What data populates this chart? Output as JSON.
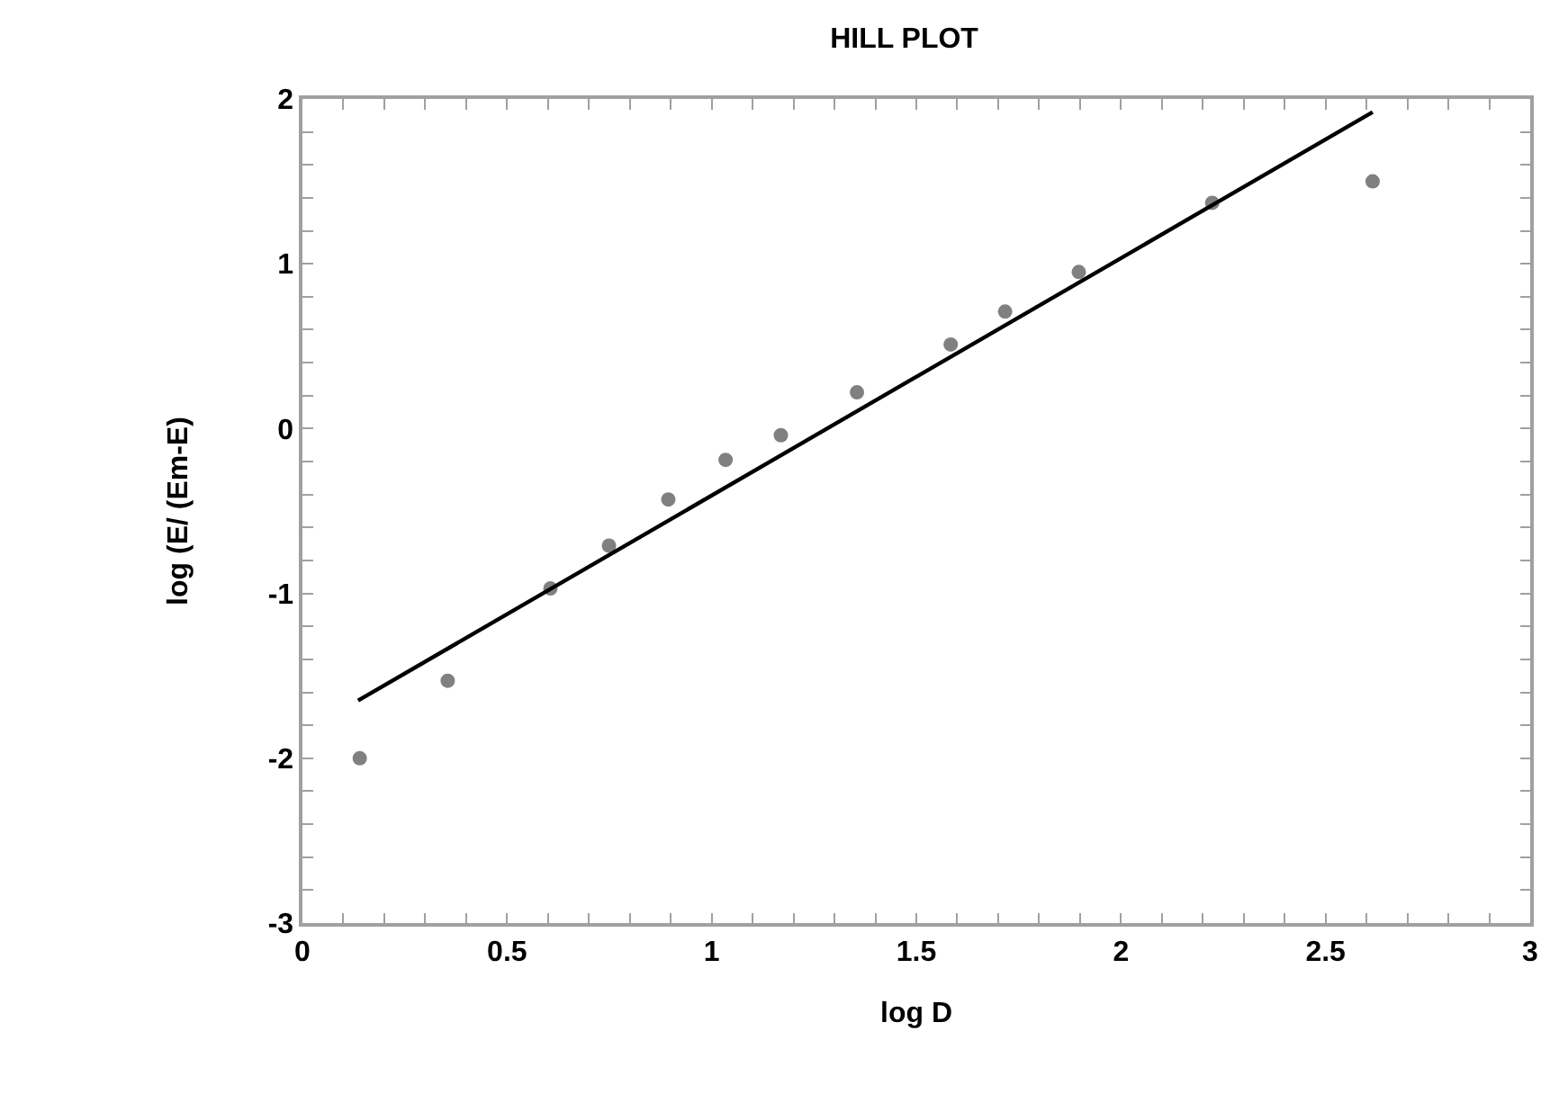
{
  "chart_data": {
    "type": "scatter",
    "title": "HILL PLOT",
    "xlabel": "log D",
    "ylabel": "log (E/ (Em-E)",
    "xlim": [
      0,
      3
    ],
    "ylim": [
      -3,
      2
    ],
    "xticks": [
      0,
      {
        "value": 0.1,
        "label": null
      },
      {
        "value": 0.2,
        "label": null
      },
      {
        "value": 0.3,
        "label": null
      },
      {
        "value": 0.4,
        "label": null
      },
      0.5,
      {
        "value": 0.6,
        "label": null
      },
      {
        "value": 0.7,
        "label": null
      },
      {
        "value": 0.8,
        "label": null
      },
      {
        "value": 0.9,
        "label": null
      },
      1,
      {
        "value": 1.1,
        "label": null
      },
      {
        "value": 1.2,
        "label": null
      },
      {
        "value": 1.3,
        "label": null
      },
      {
        "value": 1.4,
        "label": null
      },
      1.5,
      {
        "value": 1.6,
        "label": null
      },
      {
        "value": 1.7,
        "label": null
      },
      {
        "value": 1.8,
        "label": null
      },
      {
        "value": 1.9,
        "label": null
      },
      2,
      {
        "value": 2.1,
        "label": null
      },
      {
        "value": 2.2,
        "label": null
      },
      {
        "value": 2.3,
        "label": null
      },
      {
        "value": 2.4,
        "label": null
      },
      2.5,
      {
        "value": 2.6,
        "label": null
      },
      {
        "value": 2.7,
        "label": null
      },
      {
        "value": 2.8,
        "label": null
      },
      {
        "value": 2.9,
        "label": null
      },
      3
    ],
    "yticks": [
      -3,
      {
        "value": -2.8,
        "label": null
      },
      {
        "value": -2.6,
        "label": null
      },
      {
        "value": -2.4,
        "label": null
      },
      {
        "value": -2.2,
        "label": null
      },
      -2,
      {
        "value": -1.8,
        "label": null
      },
      {
        "value": -1.6,
        "label": null
      },
      {
        "value": -1.4,
        "label": null
      },
      {
        "value": -1.2,
        "label": null
      },
      -1,
      {
        "value": -0.8,
        "label": null
      },
      {
        "value": -0.6,
        "label": null
      },
      {
        "value": -0.4,
        "label": null
      },
      {
        "value": -0.2,
        "label": null
      },
      0,
      {
        "value": 0.2,
        "label": null
      },
      {
        "value": 0.4,
        "label": null
      },
      {
        "value": 0.6,
        "label": null
      },
      {
        "value": 0.8,
        "label": null
      },
      1,
      {
        "value": 1.2,
        "label": null
      },
      {
        "value": 1.4,
        "label": null
      },
      {
        "value": 1.6,
        "label": null
      },
      {
        "value": 1.8,
        "label": null
      },
      2
    ],
    "series": [
      {
        "marker": "circle",
        "color": "#808080",
        "x": [
          0.14,
          0.355,
          0.606,
          0.749,
          0.894,
          1.034,
          1.169,
          1.355,
          1.584,
          1.717,
          1.897,
          2.223,
          2.615
        ],
        "values": [
          -2.0,
          -1.53,
          -0.97,
          -0.71,
          -0.43,
          -0.19,
          -0.04,
          0.22,
          0.51,
          0.71,
          0.95,
          1.37,
          1.5
        ]
      },
      {
        "type": "line",
        "marker": "none",
        "line_style": "solid",
        "color": "#000000",
        "x": [
          0.136,
          2.615
        ],
        "values": [
          -1.65,
          1.92
        ]
      }
    ]
  }
}
